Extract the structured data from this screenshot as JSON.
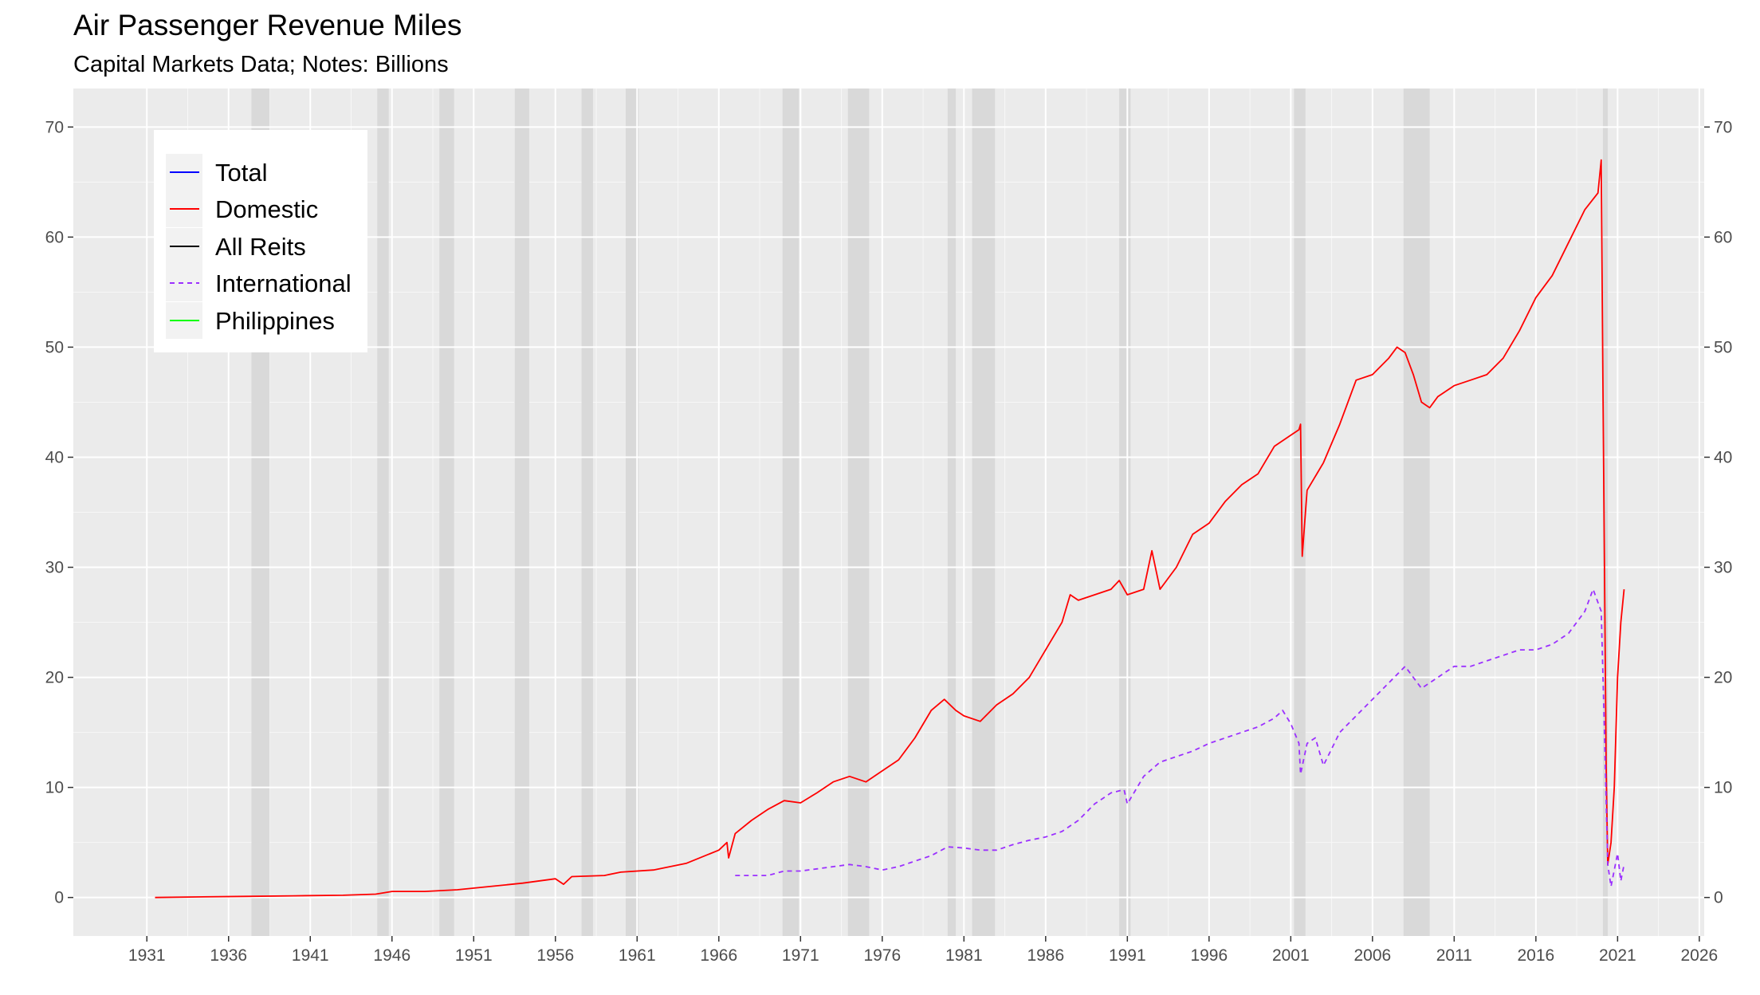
{
  "chart_data": {
    "type": "line",
    "title": "Air Passenger Revenue Miles",
    "subtitle": "Capital Markets Data; Notes: Billions",
    "xlabel": "",
    "ylabel": "",
    "xlim": [
      1926.5,
      2026.3
    ],
    "ylim": [
      -3.5,
      73.5
    ],
    "x_ticks": [
      "1931",
      "1936",
      "1941",
      "1946",
      "1951",
      "1956",
      "1961",
      "1966",
      "1971",
      "1976",
      "1981",
      "1986",
      "1991",
      "1996",
      "2001",
      "2006",
      "2011",
      "2016",
      "2021",
      "2026"
    ],
    "y_ticks": [
      "0",
      "10",
      "20",
      "30",
      "40",
      "50",
      "60",
      "70"
    ],
    "grid": true,
    "secondary_y_axis": true,
    "legend_position": "top-left",
    "recessions": [
      [
        1937.4,
        1938.5
      ],
      [
        1945.1,
        1945.8
      ],
      [
        1948.9,
        1949.8
      ],
      [
        1953.5,
        1954.4
      ],
      [
        1957.6,
        1958.3
      ],
      [
        1960.3,
        1961.1
      ],
      [
        1969.9,
        1970.9
      ],
      [
        1973.9,
        1975.2
      ],
      [
        1980.0,
        1980.5
      ],
      [
        1981.5,
        1982.9
      ],
      [
        1990.5,
        1991.2
      ],
      [
        2001.2,
        2001.9
      ],
      [
        2007.9,
        2009.5
      ],
      [
        2020.1,
        2020.4
      ]
    ],
    "series": [
      {
        "name": "Total",
        "color": "#0000ff",
        "dash": "solid",
        "points": []
      },
      {
        "name": "Domestic",
        "color": "#ff0000",
        "dash": "solid",
        "points": [
          [
            1931.5,
            0.0
          ],
          [
            1934,
            0.05
          ],
          [
            1937,
            0.1
          ],
          [
            1940,
            0.15
          ],
          [
            1943,
            0.2
          ],
          [
            1945,
            0.3
          ],
          [
            1946,
            0.55
          ],
          [
            1948,
            0.55
          ],
          [
            1950,
            0.7
          ],
          [
            1952,
            1.0
          ],
          [
            1954,
            1.3
          ],
          [
            1956,
            1.7
          ],
          [
            1956.5,
            1.2
          ],
          [
            1957,
            1.9
          ],
          [
            1959,
            2.0
          ],
          [
            1960,
            2.3
          ],
          [
            1962,
            2.5
          ],
          [
            1964,
            3.1
          ],
          [
            1966,
            4.3
          ],
          [
            1966.5,
            5.0
          ],
          [
            1966.6,
            3.6
          ],
          [
            1967,
            5.8
          ],
          [
            1968,
            7.0
          ],
          [
            1969,
            8.0
          ],
          [
            1970,
            8.8
          ],
          [
            1971,
            8.6
          ],
          [
            1972,
            9.5
          ],
          [
            1973,
            10.5
          ],
          [
            1974,
            11.0
          ],
          [
            1975,
            10.5
          ],
          [
            1976,
            11.5
          ],
          [
            1977,
            12.5
          ],
          [
            1978,
            14.5
          ],
          [
            1979,
            17.0
          ],
          [
            1979.8,
            18.0
          ],
          [
            1980.5,
            17.0
          ],
          [
            1981,
            16.5
          ],
          [
            1982,
            16.0
          ],
          [
            1983,
            17.5
          ],
          [
            1984,
            18.5
          ],
          [
            1985,
            20.0
          ],
          [
            1986,
            22.5
          ],
          [
            1987,
            25.0
          ],
          [
            1987.5,
            27.5
          ],
          [
            1988,
            27.0
          ],
          [
            1989,
            27.5
          ],
          [
            1990,
            28.0
          ],
          [
            1990.5,
            28.8
          ],
          [
            1991,
            27.5
          ],
          [
            1992,
            28.0
          ],
          [
            1992.5,
            31.5
          ],
          [
            1993,
            28.0
          ],
          [
            1994,
            30.0
          ],
          [
            1995,
            33.0
          ],
          [
            1996,
            34.0
          ],
          [
            1997,
            36.0
          ],
          [
            1998,
            37.5
          ],
          [
            1999,
            38.5
          ],
          [
            2000,
            41.0
          ],
          [
            2001,
            42.0
          ],
          [
            2001.5,
            42.5
          ],
          [
            2001.6,
            43.0
          ],
          [
            2001.7,
            31.0
          ],
          [
            2002,
            37.0
          ],
          [
            2003,
            39.5
          ],
          [
            2004,
            43.0
          ],
          [
            2005,
            47.0
          ],
          [
            2006,
            47.5
          ],
          [
            2007,
            49.0
          ],
          [
            2007.5,
            50.0
          ],
          [
            2008,
            49.5
          ],
          [
            2008.5,
            47.5
          ],
          [
            2009,
            45.0
          ],
          [
            2009.5,
            44.5
          ],
          [
            2010,
            45.5
          ],
          [
            2011,
            46.5
          ],
          [
            2012,
            47.0
          ],
          [
            2013,
            47.5
          ],
          [
            2014,
            49.0
          ],
          [
            2015,
            51.5
          ],
          [
            2016,
            54.5
          ],
          [
            2017,
            56.5
          ],
          [
            2018,
            59.5
          ],
          [
            2019,
            62.5
          ],
          [
            2019.8,
            64.0
          ],
          [
            2020.0,
            67.0
          ],
          [
            2020.1,
            47.0
          ],
          [
            2020.3,
            12.0
          ],
          [
            2020.4,
            3.0
          ],
          [
            2020.6,
            5.0
          ],
          [
            2020.8,
            10.0
          ],
          [
            2021.0,
            20.0
          ],
          [
            2021.2,
            25.0
          ],
          [
            2021.4,
            28.0
          ]
        ]
      },
      {
        "name": "All Reits",
        "color": "#000000",
        "dash": "solid",
        "points": []
      },
      {
        "name": "International",
        "color": "#9b30ff",
        "dash": "dashed",
        "points": [
          [
            1967,
            2.0
          ],
          [
            1968,
            2.0
          ],
          [
            1969,
            2.0
          ],
          [
            1970,
            2.4
          ],
          [
            1971,
            2.4
          ],
          [
            1972,
            2.6
          ],
          [
            1973,
            2.8
          ],
          [
            1974,
            3.0
          ],
          [
            1975,
            2.8
          ],
          [
            1976,
            2.5
          ],
          [
            1977,
            2.8
          ],
          [
            1978,
            3.3
          ],
          [
            1979,
            3.8
          ],
          [
            1980,
            4.6
          ],
          [
            1981,
            4.5
          ],
          [
            1982,
            4.3
          ],
          [
            1983,
            4.3
          ],
          [
            1984,
            4.8
          ],
          [
            1985,
            5.2
          ],
          [
            1986,
            5.5
          ],
          [
            1987,
            6.0
          ],
          [
            1988,
            7.0
          ],
          [
            1989,
            8.5
          ],
          [
            1990,
            9.5
          ],
          [
            1990.8,
            9.8
          ],
          [
            1991,
            8.5
          ],
          [
            1992,
            11.0
          ],
          [
            1993,
            12.3
          ],
          [
            1994,
            12.8
          ],
          [
            1995,
            13.3
          ],
          [
            1996,
            14.0
          ],
          [
            1997,
            14.5
          ],
          [
            1998,
            15.0
          ],
          [
            1999,
            15.5
          ],
          [
            2000,
            16.3
          ],
          [
            2000.5,
            17.0
          ],
          [
            2001,
            15.8
          ],
          [
            2001.5,
            14.0
          ],
          [
            2001.6,
            11.2
          ],
          [
            2002,
            14.0
          ],
          [
            2002.5,
            14.5
          ],
          [
            2003,
            12.0
          ],
          [
            2003.5,
            13.5
          ],
          [
            2004,
            15.0
          ],
          [
            2005,
            16.5
          ],
          [
            2006,
            18.0
          ],
          [
            2007,
            19.5
          ],
          [
            2008,
            21.0
          ],
          [
            2009,
            19.0
          ],
          [
            2010,
            20.0
          ],
          [
            2011,
            21.0
          ],
          [
            2012,
            21.0
          ],
          [
            2013,
            21.5
          ],
          [
            2014,
            22.0
          ],
          [
            2015,
            22.5
          ],
          [
            2016,
            22.5
          ],
          [
            2017,
            23.0
          ],
          [
            2018,
            24.0
          ],
          [
            2019,
            26.0
          ],
          [
            2019.5,
            28.0
          ],
          [
            2020.0,
            26.0
          ],
          [
            2020.2,
            15.0
          ],
          [
            2020.4,
            3.0
          ],
          [
            2020.6,
            1.0
          ],
          [
            2020.8,
            2.5
          ],
          [
            2021.0,
            4.0
          ],
          [
            2021.2,
            1.5
          ],
          [
            2021.4,
            3.0
          ]
        ]
      },
      {
        "name": "Philippines",
        "color": "#00ff00",
        "dash": "solid",
        "points": []
      }
    ]
  }
}
